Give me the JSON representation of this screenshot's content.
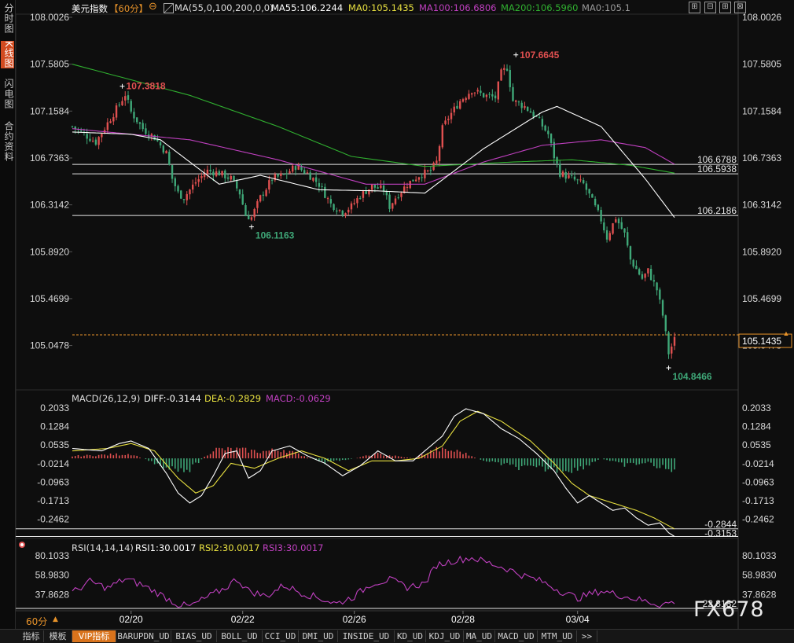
{
  "sidebar": [
    {
      "label": "分时图",
      "active": false
    },
    {
      "label": "K线图",
      "active": true
    },
    {
      "label": "闪电图",
      "active": false
    },
    {
      "label": "合约资料",
      "active": false
    }
  ],
  "header": {
    "symbol": "美元指数",
    "period": "【60分】",
    "ma_params": "MA(55,0,100,200,0,0)",
    "ma55": "MA55:106.2244",
    "ma0": "MA0:105.1435",
    "ma100": "MA100:106.6806",
    "ma200": "MA200:106.5960",
    "ma0b": "MA0:105.1"
  },
  "window_buttons": [
    "⊞",
    "⊟",
    "⊞",
    "⊠"
  ],
  "colors": {
    "up": "#e05050",
    "down": "#3fa878",
    "ma55": "#ffffff",
    "ma100": "#c040c0",
    "ma200": "#30b030",
    "dea": "#e8e040",
    "last_price": "#e8932a"
  },
  "price_axis": {
    "ticks": [
      "108.0026",
      "107.5805",
      "107.1584",
      "106.7363",
      "106.3142",
      "105.8920",
      "105.4699",
      "105.0478"
    ],
    "last_price": "105.1435"
  },
  "annotations": {
    "high1": "107.3818",
    "high2": "107.6645",
    "low1": "106.1163",
    "low2": "104.8466",
    "level1": "106.6788",
    "level2": "106.5938",
    "level3": "106.2186"
  },
  "macd": {
    "title": "MACD(26,12,9)",
    "diff": "DIFF:-0.3144",
    "dea": "DEA:-0.2829",
    "macd": "MACD:-0.0629",
    "ticks": [
      "0.2033",
      "0.1284",
      "0.0535",
      "-0.0214",
      "-0.0963",
      "-0.1713",
      "-0.2462"
    ],
    "level1": "-0.2844",
    "level2": "-0.3153"
  },
  "rsi": {
    "title": "RSI(14,14,14)",
    "rsi1": "RSI1:30.0017",
    "rsi2": "RSI2:30.0017",
    "rsi3": "RSI3:30.0017",
    "ticks": [
      "80.1033",
      "58.9830",
      "37.8628"
    ],
    "level": "22.8182"
  },
  "date_labels": [
    "02/20",
    "02/22",
    "02/26",
    "02/28",
    "03/04"
  ],
  "period_label": "60分",
  "bottom_tabs": [
    "指标",
    "模板",
    "VIP指标",
    "BARUPDN_UD",
    "BIAS_UD",
    "BOLL_UD",
    "CCI_UD",
    "DMI_UD",
    "INSIDE_UD",
    "KD_UD",
    "KDJ_UD",
    "MA_UD",
    "MACD_UD",
    "MTM_UD",
    ">>"
  ],
  "watermark": "FX678",
  "chart_data": [
    {
      "type": "candlestick",
      "title": "美元指数 60分",
      "ylim": [
        104.8466,
        108.0026
      ],
      "y_ticks": [
        108.0026,
        107.5805,
        107.1584,
        106.7363,
        106.3142,
        105.892,
        105.4699,
        105.0478
      ],
      "x_labels": [
        "02/20",
        "02/22",
        "02/26",
        "02/28",
        "03/04"
      ],
      "close_path": [
        [
          0,
          107.02
        ],
        [
          4,
          106.95
        ],
        [
          8,
          106.88
        ],
        [
          12,
          107.05
        ],
        [
          16,
          107.22
        ],
        [
          18,
          107.31
        ],
        [
          20,
          107.15
        ],
        [
          24,
          107.0
        ],
        [
          28,
          106.92
        ],
        [
          32,
          106.78
        ],
        [
          34,
          106.55
        ],
        [
          36,
          106.42
        ],
        [
          38,
          106.38
        ],
        [
          42,
          106.52
        ],
        [
          46,
          106.62
        ],
        [
          50,
          106.6
        ],
        [
          54,
          106.55
        ],
        [
          57,
          106.42
        ],
        [
          59,
          106.22
        ],
        [
          61,
          106.2
        ],
        [
          64,
          106.38
        ],
        [
          68,
          106.55
        ],
        [
          72,
          106.58
        ],
        [
          76,
          106.66
        ],
        [
          80,
          106.6
        ],
        [
          84,
          106.5
        ],
        [
          88,
          106.32
        ],
        [
          92,
          106.25
        ],
        [
          95,
          106.3
        ],
        [
          98,
          106.4
        ],
        [
          102,
          106.48
        ],
        [
          106,
          106.45
        ],
        [
          108,
          106.3
        ],
        [
          110,
          106.38
        ],
        [
          114,
          106.5
        ],
        [
          118,
          106.58
        ],
        [
          122,
          106.62
        ],
        [
          124,
          106.7
        ],
        [
          126,
          107.0
        ],
        [
          128,
          107.1
        ],
        [
          132,
          107.25
        ],
        [
          136,
          107.35
        ],
        [
          140,
          107.3
        ],
        [
          144,
          107.28
        ],
        [
          146,
          107.5
        ],
        [
          148,
          107.55
        ],
        [
          150,
          107.25
        ],
        [
          154,
          107.2
        ],
        [
          158,
          107.1
        ],
        [
          162,
          106.95
        ],
        [
          164,
          106.75
        ],
        [
          166,
          106.6
        ],
        [
          170,
          106.55
        ],
        [
          174,
          106.5
        ],
        [
          176,
          106.4
        ],
        [
          180,
          106.18
        ],
        [
          182,
          106.02
        ],
        [
          185,
          106.2
        ],
        [
          188,
          106.05
        ],
        [
          190,
          105.82
        ],
        [
          194,
          105.65
        ],
        [
          196,
          105.72
        ],
        [
          199,
          105.55
        ],
        [
          201,
          105.32
        ],
        [
          203,
          104.98
        ],
        [
          205,
          105.1
        ]
      ],
      "ma55": [
        [
          0,
          106.97
        ],
        [
          20,
          106.95
        ],
        [
          30,
          106.9
        ],
        [
          50,
          106.5
        ],
        [
          64,
          106.58
        ],
        [
          84,
          106.45
        ],
        [
          104,
          106.44
        ],
        [
          120,
          106.42
        ],
        [
          140,
          106.82
        ],
        [
          160,
          107.15
        ],
        [
          165,
          107.2
        ],
        [
          180,
          107.02
        ],
        [
          195,
          106.55
        ],
        [
          205,
          106.2
        ]
      ],
      "ma100": [
        [
          0,
          107.0
        ],
        [
          40,
          106.9
        ],
        [
          70,
          106.72
        ],
        [
          100,
          106.5
        ],
        [
          120,
          106.5
        ],
        [
          140,
          106.7
        ],
        [
          160,
          106.85
        ],
        [
          180,
          106.9
        ],
        [
          195,
          106.83
        ],
        [
          205,
          106.68
        ]
      ],
      "ma200": [
        [
          0,
          107.58
        ],
        [
          40,
          107.3
        ],
        [
          70,
          107.02
        ],
        [
          95,
          106.75
        ],
        [
          120,
          106.66
        ],
        [
          150,
          106.7
        ],
        [
          170,
          106.72
        ],
        [
          190,
          106.67
        ],
        [
          205,
          106.6
        ]
      ],
      "horizontal_levels": [
        106.6788,
        106.5938,
        106.2186
      ],
      "last_price": 105.1435
    },
    {
      "type": "macd",
      "title": "MACD(26,12,9)",
      "ylim": [
        -0.32,
        0.2033
      ],
      "y_ticks": [
        0.2033,
        0.1284,
        0.0535,
        -0.0214,
        -0.0963,
        -0.1713,
        -0.2462
      ],
      "diff": [
        [
          0,
          0.04
        ],
        [
          10,
          0.03
        ],
        [
          16,
          0.06
        ],
        [
          20,
          0.07
        ],
        [
          26,
          0.04
        ],
        [
          32,
          -0.06
        ],
        [
          36,
          -0.14
        ],
        [
          40,
          -0.18
        ],
        [
          44,
          -0.15
        ],
        [
          48,
          -0.07
        ],
        [
          52,
          0.02
        ],
        [
          56,
          0.03
        ],
        [
          60,
          -0.08
        ],
        [
          64,
          -0.05
        ],
        [
          68,
          0.03
        ],
        [
          74,
          0.05
        ],
        [
          80,
          0.01
        ],
        [
          86,
          -0.02
        ],
        [
          92,
          -0.07
        ],
        [
          98,
          -0.03
        ],
        [
          104,
          0.03
        ],
        [
          110,
          -0.01
        ],
        [
          116,
          -0.01
        ],
        [
          122,
          0.05
        ],
        [
          126,
          0.09
        ],
        [
          130,
          0.17
        ],
        [
          134,
          0.2
        ],
        [
          140,
          0.18
        ],
        [
          146,
          0.12
        ],
        [
          152,
          0.08
        ],
        [
          158,
          0.02
        ],
        [
          164,
          -0.05
        ],
        [
          168,
          -0.12
        ],
        [
          172,
          -0.18
        ],
        [
          176,
          -0.15
        ],
        [
          180,
          -0.18
        ],
        [
          184,
          -0.21
        ],
        [
          188,
          -0.2
        ],
        [
          192,
          -0.24
        ],
        [
          196,
          -0.27
        ],
        [
          200,
          -0.26
        ],
        [
          203,
          -0.3
        ],
        [
          205,
          -0.3153
        ]
      ],
      "dea": [
        [
          0,
          0.03
        ],
        [
          12,
          0.04
        ],
        [
          20,
          0.06
        ],
        [
          28,
          0.03
        ],
        [
          36,
          -0.08
        ],
        [
          42,
          -0.14
        ],
        [
          48,
          -0.11
        ],
        [
          54,
          -0.02
        ],
        [
          62,
          -0.04
        ],
        [
          70,
          0.0
        ],
        [
          78,
          0.03
        ],
        [
          86,
          0.0
        ],
        [
          94,
          -0.05
        ],
        [
          102,
          -0.01
        ],
        [
          110,
          -0.01
        ],
        [
          118,
          0.0
        ],
        [
          126,
          0.05
        ],
        [
          132,
          0.15
        ],
        [
          138,
          0.19
        ],
        [
          146,
          0.15
        ],
        [
          156,
          0.07
        ],
        [
          164,
          -0.02
        ],
        [
          170,
          -0.1
        ],
        [
          176,
          -0.15
        ],
        [
          184,
          -0.18
        ],
        [
          192,
          -0.21
        ],
        [
          198,
          -0.24
        ],
        [
          205,
          -0.2844
        ]
      ],
      "histogram_sign_points": [
        [
          0,
          0.01
        ],
        [
          20,
          0.02
        ],
        [
          32,
          -0.04
        ],
        [
          40,
          -0.05
        ],
        [
          48,
          0.04
        ],
        [
          56,
          0.04
        ],
        [
          64,
          0.03
        ],
        [
          72,
          0.04
        ],
        [
          86,
          -0.02
        ],
        [
          96,
          0.0
        ],
        [
          104,
          0.02
        ],
        [
          116,
          0.0
        ],
        [
          124,
          0.04
        ],
        [
          132,
          0.03
        ],
        [
          140,
          -0.01
        ],
        [
          152,
          -0.04
        ],
        [
          164,
          -0.05
        ],
        [
          172,
          -0.05
        ],
        [
          180,
          0.0
        ],
        [
          188,
          -0.03
        ],
        [
          196,
          -0.02
        ],
        [
          205,
          -0.0629
        ]
      ]
    },
    {
      "type": "line",
      "title": "RSI(14,14,14)",
      "ylim": [
        22.8182,
        80.1033
      ],
      "y_ticks": [
        80.1033,
        58.983,
        37.8628
      ],
      "series": [
        {
          "name": "RSI1",
          "values": [
            [
              0,
              40
            ],
            [
              6,
              52
            ],
            [
              12,
              45
            ],
            [
              18,
              55
            ],
            [
              24,
              48
            ],
            [
              30,
              38
            ],
            [
              36,
              27
            ],
            [
              40,
              25
            ],
            [
              46,
              35
            ],
            [
              52,
              45
            ],
            [
              56,
              55
            ],
            [
              60,
              42
            ],
            [
              66,
              36
            ],
            [
              72,
              48
            ],
            [
              78,
              40
            ],
            [
              84,
              34
            ],
            [
              90,
              28
            ],
            [
              96,
              36
            ],
            [
              102,
              50
            ],
            [
              108,
              54
            ],
            [
              114,
              46
            ],
            [
              120,
              50
            ],
            [
              124,
              70
            ],
            [
              130,
              75
            ],
            [
              136,
              78
            ],
            [
              142,
              72
            ],
            [
              148,
              66
            ],
            [
              154,
              58
            ],
            [
              160,
              52
            ],
            [
              166,
              42
            ],
            [
              172,
              34
            ],
            [
              180,
              42
            ],
            [
              188,
              36
            ],
            [
              196,
              30
            ],
            [
              200,
              27
            ],
            [
              205,
              30
            ]
          ]
        }
      ],
      "horizontal_levels": [
        22.8182
      ]
    }
  ]
}
